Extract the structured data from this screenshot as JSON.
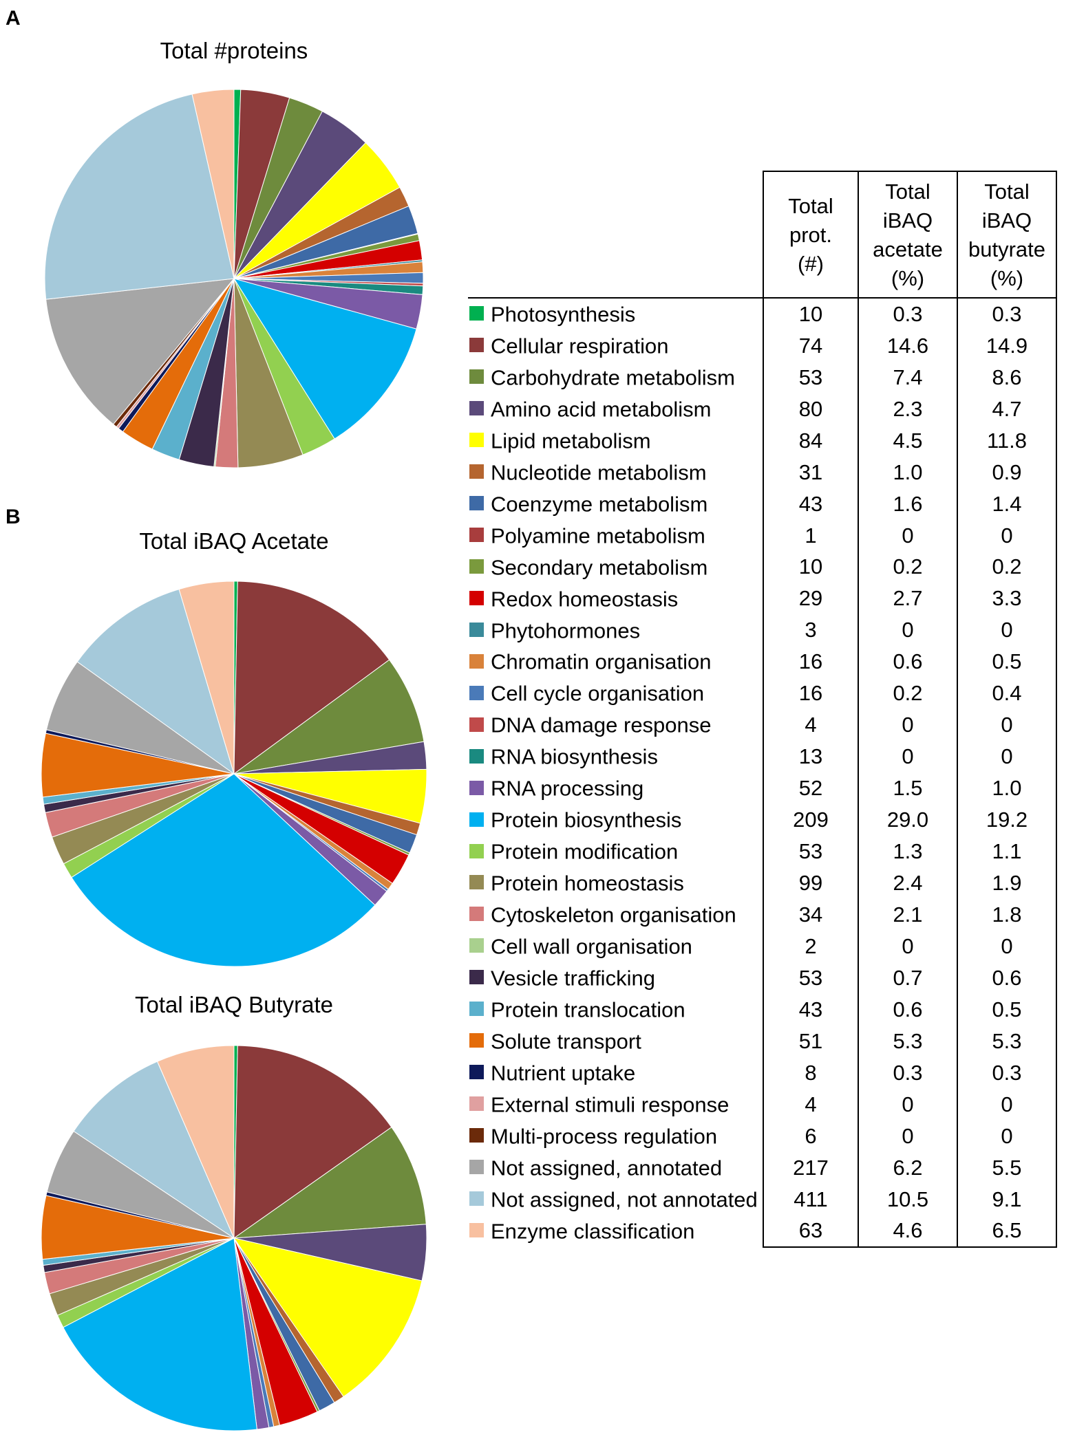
{
  "panels": {
    "a": "A",
    "b": "B"
  },
  "chart_data": [
    {
      "type": "pie",
      "title": "Total #proteins",
      "measure": "Total prot. (#)",
      "categories": [
        "Photosynthesis",
        "Cellular respiration",
        "Carbohydrate metabolism",
        "Amino acid metabolism",
        "Lipid metabolism",
        "Nucleotide metabolism",
        "Coenzyme metabolism",
        "Polyamine metabolism",
        "Secondary metabolism",
        "Redox homeostasis",
        "Phytohormones",
        "Chromatin organisation",
        "Cell cycle organisation",
        "DNA damage response",
        "RNA biosynthesis",
        "RNA processing",
        "Protein biosynthesis",
        "Protein modification",
        "Protein homeostasis",
        "Cytoskeleton organisation",
        "Cell wall organisation",
        "Vesicle trafficking",
        "Protein translocation",
        "Solute transport",
        "Nutrient uptake",
        "External stimuli response",
        "Multi-process regulation",
        "Not assigned, annotated",
        "Not assigned, not annotated",
        "Enzyme classification"
      ],
      "values": [
        10,
        74,
        53,
        80,
        84,
        31,
        43,
        1,
        10,
        29,
        3,
        16,
        16,
        4,
        13,
        52,
        209,
        53,
        99,
        34,
        2,
        53,
        43,
        51,
        8,
        4,
        6,
        217,
        411,
        63
      ]
    },
    {
      "type": "pie",
      "title": "Total iBAQ Acetate",
      "measure": "Total iBAQ acetate (%)",
      "categories": [
        "Photosynthesis",
        "Cellular respiration",
        "Carbohydrate metabolism",
        "Amino acid metabolism",
        "Lipid metabolism",
        "Nucleotide metabolism",
        "Coenzyme metabolism",
        "Polyamine metabolism",
        "Secondary metabolism",
        "Redox homeostasis",
        "Phytohormones",
        "Chromatin organisation",
        "Cell cycle organisation",
        "DNA damage response",
        "RNA biosynthesis",
        "RNA processing",
        "Protein biosynthesis",
        "Protein modification",
        "Protein homeostasis",
        "Cytoskeleton organisation",
        "Cell wall organisation",
        "Vesicle trafficking",
        "Protein translocation",
        "Solute transport",
        "Nutrient uptake",
        "External stimuli response",
        "Multi-process regulation",
        "Not assigned, annotated",
        "Not assigned, not annotated",
        "Enzyme classification"
      ],
      "values": [
        0.3,
        14.6,
        7.4,
        2.3,
        4.5,
        1.0,
        1.6,
        0,
        0.2,
        2.7,
        0,
        0.6,
        0.2,
        0,
        0,
        1.5,
        29.0,
        1.3,
        2.4,
        2.1,
        0,
        0.7,
        0.6,
        5.3,
        0.3,
        0,
        0,
        6.2,
        10.5,
        4.6
      ]
    },
    {
      "type": "pie",
      "title": "Total iBAQ Butyrate",
      "measure": "Total iBAQ butyrate (%)",
      "categories": [
        "Photosynthesis",
        "Cellular respiration",
        "Carbohydrate metabolism",
        "Amino acid metabolism",
        "Lipid metabolism",
        "Nucleotide metabolism",
        "Coenzyme metabolism",
        "Polyamine metabolism",
        "Secondary metabolism",
        "Redox homeostasis",
        "Phytohormones",
        "Chromatin organisation",
        "Cell cycle organisation",
        "DNA damage response",
        "RNA biosynthesis",
        "RNA processing",
        "Protein biosynthesis",
        "Protein modification",
        "Protein homeostasis",
        "Cytoskeleton organisation",
        "Cell wall organisation",
        "Vesicle trafficking",
        "Protein translocation",
        "Solute transport",
        "Nutrient uptake",
        "External stimuli response",
        "Multi-process regulation",
        "Not assigned, annotated",
        "Not assigned, not annotated",
        "Enzyme classification"
      ],
      "values": [
        0.3,
        14.9,
        8.6,
        4.7,
        11.8,
        0.9,
        1.4,
        0,
        0.2,
        3.3,
        0,
        0.5,
        0.4,
        0,
        0,
        1.0,
        19.2,
        1.1,
        1.9,
        1.8,
        0,
        0.6,
        0.5,
        5.3,
        0.3,
        0,
        0,
        5.5,
        9.1,
        6.5
      ]
    }
  ],
  "table": {
    "headers": [
      "Total\nprot.\n(#)",
      "Total\niBAQ\nacetate\n(%)",
      "Total\niBAQ\nbutyrate\n(%)"
    ],
    "rows": [
      {
        "name": "Photosynthesis",
        "color": "#00b050",
        "prot": "10",
        "acetate": "0.3",
        "butyrate": "0.3"
      },
      {
        "name": "Cellular respiration",
        "color": "#8b3a3a",
        "prot": "74",
        "acetate": "14.6",
        "butyrate": "14.9"
      },
      {
        "name": "Carbohydrate metabolism",
        "color": "#6e8b3d",
        "prot": "53",
        "acetate": "7.4",
        "butyrate": "8.6"
      },
      {
        "name": "Amino acid metabolism",
        "color": "#5b4a7a",
        "prot": "80",
        "acetate": "2.3",
        "butyrate": "4.7"
      },
      {
        "name": "Lipid metabolism",
        "color": "#ffff00",
        "prot": "84",
        "acetate": "4.5",
        "butyrate": "11.8"
      },
      {
        "name": "Nucleotide metabolism",
        "color": "#b5652f",
        "prot": "31",
        "acetate": "1.0",
        "butyrate": "0.9"
      },
      {
        "name": "Coenzyme metabolism",
        "color": "#3e6aa6",
        "prot": "43",
        "acetate": "1.6",
        "butyrate": "1.4"
      },
      {
        "name": "Polyamine metabolism",
        "color": "#a83d3d",
        "prot": "1",
        "acetate": "0",
        "butyrate": "0"
      },
      {
        "name": "Secondary metabolism",
        "color": "#7a9a3d",
        "prot": "10",
        "acetate": "0.2",
        "butyrate": "0.2"
      },
      {
        "name": "Redox homeostasis",
        "color": "#d40000",
        "prot": "29",
        "acetate": "2.7",
        "butyrate": "3.3"
      },
      {
        "name": "Phytohormones",
        "color": "#3a8a9a",
        "prot": "3",
        "acetate": "0",
        "butyrate": "0"
      },
      {
        "name": "Chromatin organisation",
        "color": "#d9823a",
        "prot": "16",
        "acetate": "0.6",
        "butyrate": "0.5"
      },
      {
        "name": "Cell cycle organisation",
        "color": "#4a7ab8",
        "prot": "16",
        "acetate": "0.2",
        "butyrate": "0.4"
      },
      {
        "name": "DNA damage response",
        "color": "#c04a4a",
        "prot": "4",
        "acetate": "0",
        "butyrate": "0"
      },
      {
        "name": "RNA biosynthesis",
        "color": "#1a8a80",
        "prot": "13",
        "acetate": "0",
        "butyrate": "0"
      },
      {
        "name": "RNA processing",
        "color": "#7b5aa6",
        "prot": "52",
        "acetate": "1.5",
        "butyrate": "1.0"
      },
      {
        "name": "Protein biosynthesis",
        "color": "#00b0f0",
        "prot": "209",
        "acetate": "29.0",
        "butyrate": "19.2"
      },
      {
        "name": "Protein modification",
        "color": "#92d050",
        "prot": "53",
        "acetate": "1.3",
        "butyrate": "1.1"
      },
      {
        "name": "Protein homeostasis",
        "color": "#948a54",
        "prot": "99",
        "acetate": "2.4",
        "butyrate": "1.9"
      },
      {
        "name": "Cytoskeleton organisation",
        "color": "#d47a7a",
        "prot": "34",
        "acetate": "2.1",
        "butyrate": "1.8"
      },
      {
        "name": "Cell wall organisation",
        "color": "#a9d08e",
        "prot": "2",
        "acetate": "0",
        "butyrate": "0"
      },
      {
        "name": "Vesicle trafficking",
        "color": "#3b2a4a",
        "prot": "53",
        "acetate": "0.7",
        "butyrate": "0.6"
      },
      {
        "name": "Protein translocation",
        "color": "#5bb0cc",
        "prot": "43",
        "acetate": "0.6",
        "butyrate": "0.5"
      },
      {
        "name": "Solute transport",
        "color": "#e46c0a",
        "prot": "51",
        "acetate": "5.3",
        "butyrate": "5.3"
      },
      {
        "name": "Nutrient uptake",
        "color": "#0e1a5a",
        "prot": "8",
        "acetate": "0.3",
        "butyrate": "0.3"
      },
      {
        "name": "External stimuli response",
        "color": "#e0a0a0",
        "prot": "4",
        "acetate": "0",
        "butyrate": "0"
      },
      {
        "name": "Multi-process regulation",
        "color": "#6b2a0a",
        "prot": "6",
        "acetate": "0",
        "butyrate": "0"
      },
      {
        "name": "Not assigned, annotated",
        "color": "#a6a6a6",
        "prot": "217",
        "acetate": "6.2",
        "butyrate": "5.5"
      },
      {
        "name": "Not assigned, not annotated",
        "color": "#a5c9da",
        "prot": "411",
        "acetate": "10.5",
        "butyrate": "9.1"
      },
      {
        "name": "Enzyme classification",
        "color": "#f8c0a0",
        "prot": "63",
        "acetate": "4.6",
        "butyrate": "6.5"
      }
    ]
  }
}
